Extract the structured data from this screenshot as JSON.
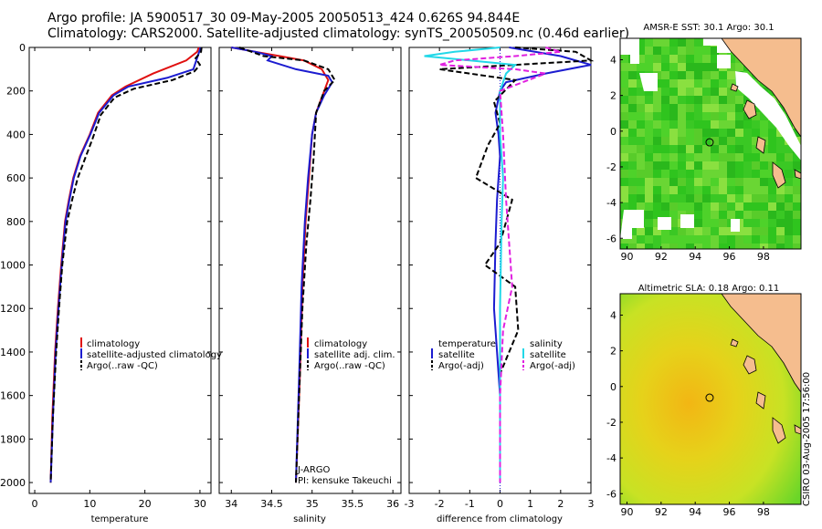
{
  "header": {
    "title_line1": "Argo profile: JA 5900517_30 09-May-2005 20050513_424 0.626S 94.844E",
    "title_line2": "Climatology: CARS2000. Satellite-adjusted climatology: synTS_20050509.nc (0.46d earlier)"
  },
  "footer": {
    "credit": "CSIRO 03-Aug-2005 17:56:00"
  },
  "colors": {
    "climatology": "#e01010",
    "satellite": "#1c1cd0",
    "argo": "#000000",
    "satellite_salinity": "#22d8e8",
    "argo_salinity": "#e020e0",
    "land": "#f5bd8e",
    "map_green": "#33cc22",
    "map_yellow": "#dde81c",
    "map_orange": "#f0b810"
  },
  "chart_data": [
    {
      "type": "line",
      "panel": "temperature",
      "xlabel": "temperature",
      "ylabel": "",
      "xlim": [
        -1,
        32
      ],
      "ylim": [
        2050,
        0
      ],
      "xticks": [
        0,
        10,
        20,
        30
      ],
      "yticks": [
        0,
        200,
        400,
        600,
        800,
        1000,
        1200,
        1400,
        1600,
        1800,
        2000
      ],
      "legend_position": "lower-right",
      "series": [
        {
          "name": "climatology",
          "style": "solid",
          "color": "#e01010",
          "x": [
            29.8,
            29.5,
            27.5,
            21.5,
            16.5,
            14.0,
            11.5,
            10.0,
            8.2,
            7.0,
            6.2,
            5.5,
            4.8,
            4.2,
            3.7,
            3.2,
            2.9
          ],
          "y": [
            0,
            20,
            60,
            120,
            180,
            220,
            300,
            400,
            500,
            600,
            700,
            800,
            1000,
            1200,
            1400,
            1700,
            2000
          ]
        },
        {
          "name": "satellite-adjusted climatology",
          "style": "solid",
          "color": "#1c1cd0",
          "x": [
            30.1,
            30.0,
            29.6,
            29.2,
            28.8,
            24.0,
            17.0,
            14.3,
            11.7,
            10.1,
            8.3,
            7.1,
            6.3,
            5.6,
            4.9,
            4.3,
            3.8,
            3.3,
            2.9
          ],
          "y": [
            0,
            10,
            40,
            70,
            100,
            140,
            180,
            220,
            300,
            400,
            500,
            600,
            700,
            800,
            1000,
            1200,
            1400,
            1700,
            2000
          ]
        },
        {
          "name": "Argo(..raw -QC)",
          "style": "dashed",
          "color": "#000000",
          "x": [
            30.3,
            30.2,
            29.2,
            30.0,
            29.0,
            25.0,
            18.0,
            14.5,
            12.0,
            10.5,
            9.0,
            7.8,
            6.8,
            5.9,
            5.0,
            4.4,
            3.9,
            3.3,
            2.9
          ],
          "y": [
            0,
            20,
            50,
            80,
            110,
            150,
            190,
            230,
            310,
            420,
            520,
            600,
            700,
            800,
            1000,
            1200,
            1400,
            1700,
            2000
          ]
        }
      ]
    },
    {
      "type": "line",
      "panel": "salinity",
      "xlabel": "salinity",
      "ylabel": "",
      "xlim": [
        33.85,
        36.1
      ],
      "ylim": [
        2050,
        0
      ],
      "xticks": [
        34,
        34.5,
        35,
        35.5,
        36
      ],
      "legend_position": "lower-right",
      "annotation_line1": "J-ARGO",
      "annotation_line2": "PI: kensuke Takeuchi",
      "series": [
        {
          "name": "climatology",
          "style": "solid",
          "color": "#e01010",
          "x": [
            34.0,
            34.3,
            34.6,
            34.9,
            35.12,
            35.2,
            35.15,
            35.05,
            35.0,
            34.96,
            34.92,
            34.88,
            34.85,
            34.8
          ],
          "y": [
            0,
            20,
            40,
            60,
            100,
            150,
            200,
            300,
            400,
            600,
            800,
            1100,
            1500,
            2000
          ]
        },
        {
          "name": "satellite adj. clim.",
          "style": "solid",
          "color": "#1c1cd0",
          "x": [
            34.0,
            34.3,
            34.5,
            34.45,
            34.8,
            35.2,
            35.25,
            35.15,
            35.05,
            35.0,
            34.95,
            34.91,
            34.87,
            34.84,
            34.8
          ],
          "y": [
            0,
            20,
            40,
            60,
            100,
            130,
            160,
            220,
            300,
            400,
            600,
            800,
            1100,
            1500,
            2000
          ]
        },
        {
          "name": "Argo(..raw -QC)",
          "style": "dashed",
          "color": "#000000",
          "x": [
            34.1,
            34.4,
            34.9,
            35.2,
            35.28,
            35.15,
            35.05,
            35.02,
            34.98,
            34.93,
            34.88,
            34.85,
            34.8
          ],
          "y": [
            0,
            40,
            60,
            100,
            150,
            200,
            300,
            500,
            700,
            900,
            1200,
            1500,
            2000
          ]
        }
      ]
    },
    {
      "type": "line",
      "panel": "difference",
      "xlabel": "difference from climatology",
      "ylabel": "",
      "xlim": [
        -3,
        3
      ],
      "ylim": [
        2050,
        0
      ],
      "xticks": [
        -3,
        -2,
        -1,
        0,
        1,
        2,
        3
      ],
      "legend_position": "lower-center",
      "legend_group_temperature": "temperature",
      "legend_group_salinity": "salinity",
      "series": [
        {
          "name": "satellite",
          "group": "temperature",
          "style": "solid",
          "color": "#1c1cd0",
          "x": [
            0.3,
            2.0,
            3.0,
            1.5,
            0.2,
            0.0,
            -0.15,
            -0.05,
            0.0,
            -0.1,
            -0.15,
            -0.2,
            -0.1,
            0.0,
            0.0,
            0.0
          ],
          "y": [
            0,
            40,
            80,
            120,
            160,
            200,
            300,
            400,
            500,
            700,
            900,
            1200,
            1400,
            1600,
            1800,
            2000
          ]
        },
        {
          "name": "Argo(-adj)",
          "group": "temperature",
          "style": "dashed",
          "color": "#000000",
          "x": [
            0.5,
            2.5,
            3.0,
            0.5,
            -2.0,
            0.5,
            -0.2,
            0.0,
            -0.4,
            -0.8,
            0.4,
            0.0,
            -0.5,
            0.5,
            0.6,
            0.0,
            0.0
          ],
          "y": [
            0,
            20,
            60,
            80,
            100,
            150,
            250,
            350,
            450,
            600,
            700,
            900,
            1000,
            1100,
            1300,
            1500,
            2000
          ]
        },
        {
          "name": "satellite",
          "group": "salinity",
          "style": "solid",
          "color": "#22d8e8",
          "x": [
            0.0,
            -1.5,
            -2.5,
            -1.0,
            0.5,
            0.2,
            0.0,
            0.0,
            0.1,
            0.05,
            0.0,
            0.0,
            0.0
          ],
          "y": [
            0,
            20,
            40,
            60,
            80,
            120,
            200,
            400,
            600,
            800,
            1200,
            1600,
            2000
          ]
        },
        {
          "name": "Argo(-adj)",
          "group": "salinity",
          "style": "dashed",
          "color": "#e020e0",
          "x": [
            1.5,
            2.0,
            0.5,
            -1.5,
            -2.0,
            0.5,
            1.5,
            0.0,
            0.1,
            0.2,
            0.4,
            0.1,
            0.0,
            0.0
          ],
          "y": [
            0,
            20,
            40,
            60,
            80,
            100,
            120,
            200,
            400,
            700,
            1100,
            1300,
            1600,
            2000
          ]
        }
      ]
    },
    {
      "type": "heatmap",
      "panel": "sst_map",
      "title": "AMSR-E SST: 30.1 Argo: 30.1",
      "xlim": [
        89.6,
        100.2
      ],
      "ylim": [
        -6.6,
        5.2
      ],
      "xticks": [
        90,
        92,
        94,
        96,
        98
      ],
      "yticks": [
        4,
        2,
        0,
        -2,
        -4,
        -6
      ],
      "argo_location": [
        94.844,
        -0.626
      ]
    },
    {
      "type": "heatmap",
      "panel": "sla_map",
      "title": "Altimetric SLA: 0.18 Argo: 0.11",
      "xlim": [
        89.6,
        100.2
      ],
      "ylim": [
        -6.6,
        5.2
      ],
      "xticks": [
        90,
        92,
        94,
        96,
        98
      ],
      "yticks": [
        4,
        2,
        0,
        -2,
        -4,
        -6
      ],
      "argo_location": [
        94.844,
        -0.626
      ]
    }
  ]
}
